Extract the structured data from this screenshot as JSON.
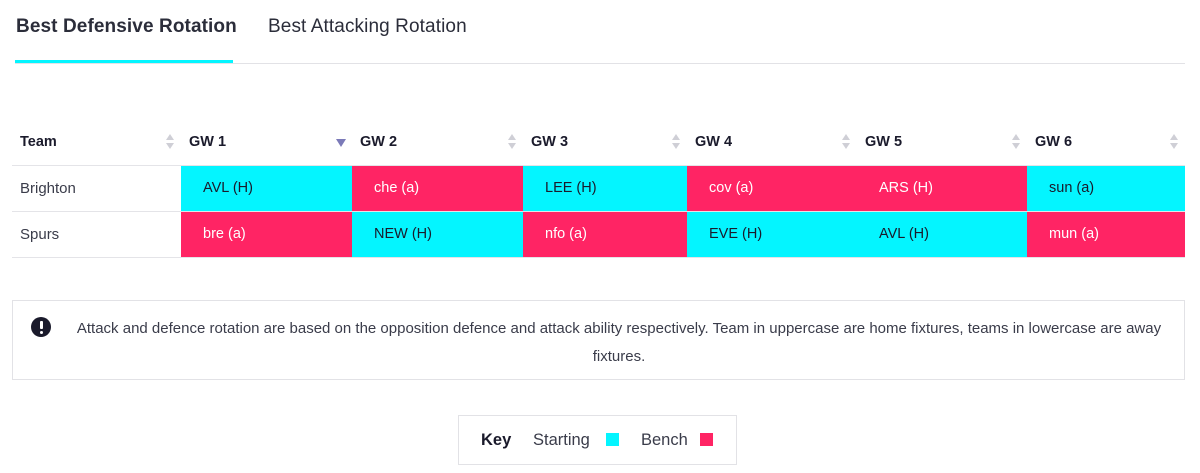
{
  "tabs": [
    {
      "label": "Best Defensive Rotation",
      "active": true
    },
    {
      "label": "Best Attacking Rotation",
      "active": false
    }
  ],
  "table": {
    "headers": [
      "Team",
      "GW 1",
      "GW 2",
      "GW 3",
      "GW 4",
      "GW 5",
      "GW 6"
    ],
    "rows": [
      {
        "team": "Brighton",
        "fixtures": [
          {
            "text": "AVL (H)",
            "status": "starting"
          },
          {
            "text": "che (a)",
            "status": "bench"
          },
          {
            "text": "LEE (H)",
            "status": "starting"
          },
          {
            "text": "cov (a)",
            "status": "bench"
          },
          {
            "text": "ARS (H)",
            "status": "bench"
          },
          {
            "text": "sun (a)",
            "status": "starting"
          }
        ]
      },
      {
        "team": "Spurs",
        "fixtures": [
          {
            "text": "bre (a)",
            "status": "bench"
          },
          {
            "text": "NEW (H)",
            "status": "starting"
          },
          {
            "text": "nfo (a)",
            "status": "bench"
          },
          {
            "text": "EVE (H)",
            "status": "starting"
          },
          {
            "text": "AVL (H)",
            "status": "starting"
          },
          {
            "text": "mun (a)",
            "status": "bench"
          }
        ]
      }
    ]
  },
  "info": {
    "icon": "exclamation-circle-icon",
    "text": "Attack and defence rotation are based on the opposition defence and attack ability respectively. Team in uppercase are home fixtures, teams in lowercase are away fixtures."
  },
  "key": {
    "title": "Key",
    "starting_label": "Starting",
    "bench_label": "Bench",
    "starting_color": "#04f5ff",
    "bench_color": "#ff2464"
  }
}
